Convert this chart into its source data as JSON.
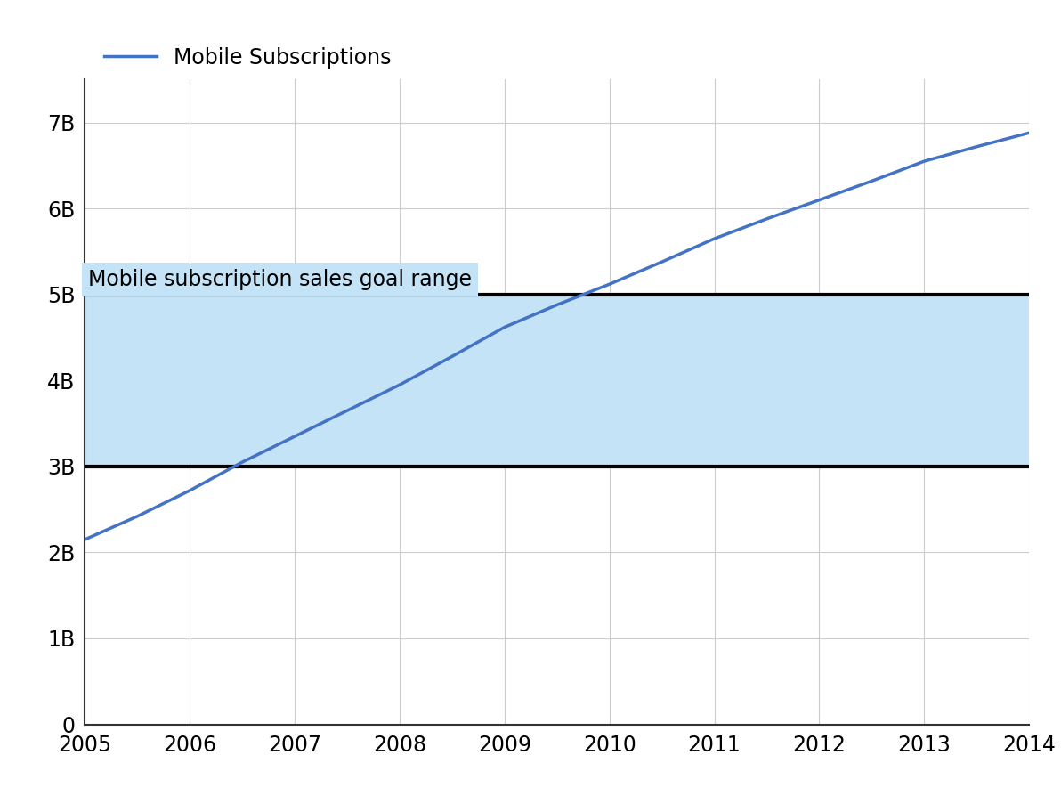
{
  "years": [
    2005,
    2005.5,
    2006,
    2006.5,
    2007,
    2007.5,
    2008,
    2008.5,
    2009,
    2009.5,
    2010,
    2010.5,
    2011,
    2011.5,
    2012,
    2012.5,
    2013,
    2013.5,
    2014
  ],
  "subscriptions": [
    2150000000.0,
    2420000000.0,
    2720000000.0,
    3050000000.0,
    3350000000.0,
    3650000000.0,
    3950000000.0,
    4280000000.0,
    4620000000.0,
    4880000000.0,
    5120000000.0,
    5380000000.0,
    5650000000.0,
    5880000000.0,
    6100000000.0,
    6320000000.0,
    6550000000.0,
    6720000000.0,
    6880000000.0
  ],
  "goal_low": 3000000000,
  "goal_high": 5000000000,
  "band_color": "#c5e3f7",
  "band_label": "Mobile subscription sales goal range",
  "line_color": "#4472c4",
  "line_label": "Mobile Subscriptions",
  "line_width": 2.5,
  "boundary_color": "#000000",
  "boundary_linewidth": 3.0,
  "xlim": [
    2005,
    2014
  ],
  "ylim": [
    0,
    7500000000
  ],
  "yticks": [
    0,
    1000000000,
    2000000000,
    3000000000,
    4000000000,
    5000000000,
    6000000000,
    7000000000
  ],
  "ytick_labels": [
    "0",
    "1B",
    "2B",
    "3B",
    "4B",
    "5B",
    "6B",
    "7B"
  ],
  "xticks": [
    2005,
    2006,
    2007,
    2008,
    2009,
    2010,
    2011,
    2012,
    2013,
    2014
  ],
  "grid_color": "#cccccc",
  "background_color": "#ffffff",
  "font_size_ticks": 17,
  "font_size_legend": 17,
  "font_size_annotation": 17
}
